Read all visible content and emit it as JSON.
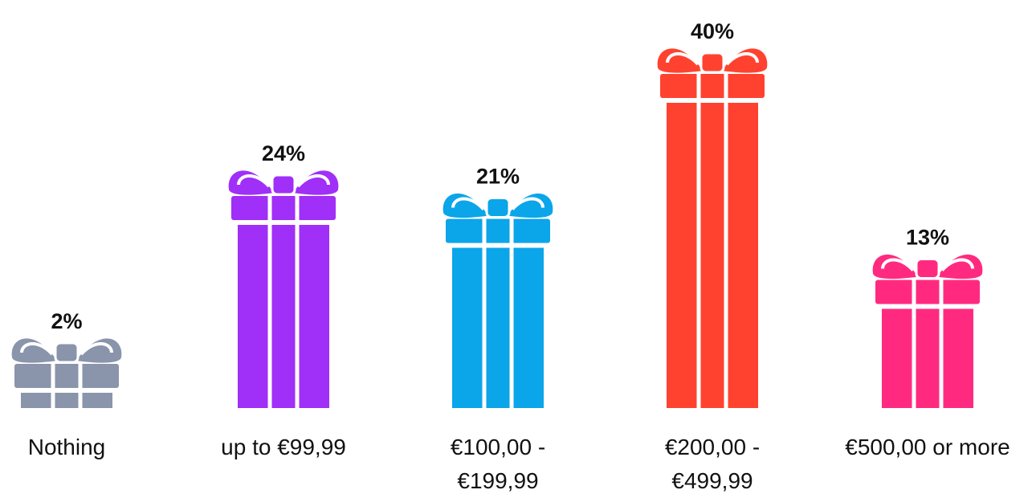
{
  "chart_data": {
    "type": "pictogram-bar",
    "categories": [
      "Nothing",
      "up to €99,99",
      "€100,00 - €199,99",
      "€200,00 - €499,99",
      "€500,00 or more"
    ],
    "values": [
      2,
      24,
      21,
      40,
      13
    ],
    "value_labels": [
      "2%",
      "24%",
      "21%",
      "40%",
      "13%"
    ],
    "colors": [
      "#8a94ab",
      "#a02ff7",
      "#0ba5ea",
      "#ff4230",
      "#ff2a80"
    ]
  }
}
